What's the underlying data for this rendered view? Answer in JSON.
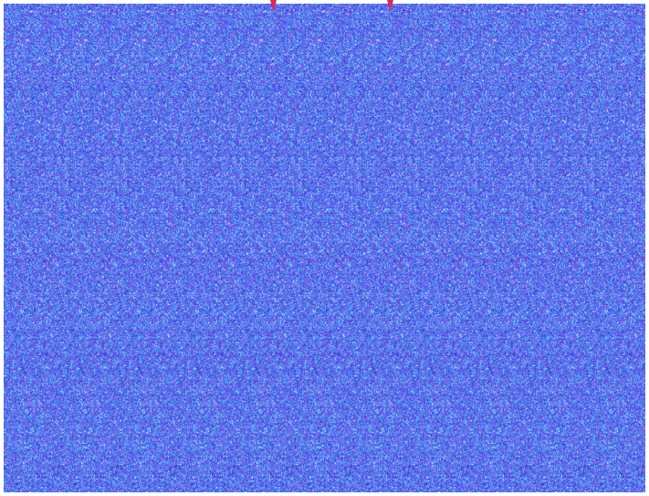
{
  "image": {
    "kind": "random-dot autostereogram",
    "palette": [
      "#3b3fd8",
      "#5a6cf4",
      "#4fa8f0",
      "#6ad8f0",
      "#7a4ad8",
      "#9b6cf0",
      "#3a8ee8",
      "#c8e8ff"
    ],
    "marker_color": "#e0245e",
    "marker_count": 2
  }
}
